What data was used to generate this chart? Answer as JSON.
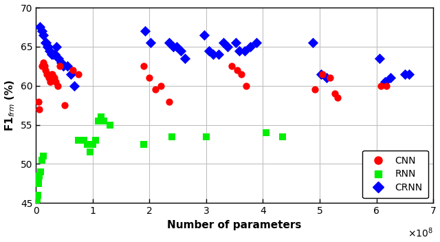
{
  "cnn_x": [
    0.04,
    0.06,
    0.1,
    0.13,
    0.15,
    0.17,
    0.19,
    0.21,
    0.23,
    0.25,
    0.27,
    0.29,
    0.32,
    0.35,
    0.38,
    0.42,
    0.5,
    0.65,
    0.75,
    1.9,
    2.0,
    2.1,
    2.2,
    2.35,
    3.45,
    3.55,
    3.62,
    3.7,
    4.92,
    5.05,
    5.18,
    5.27,
    5.32,
    6.08,
    6.18
  ],
  "cnn_y": [
    58.0,
    57.0,
    62.5,
    63.0,
    62.5,
    62.0,
    61.5,
    61.5,
    61.0,
    60.5,
    61.5,
    61.5,
    61.0,
    60.5,
    60.0,
    62.5,
    57.5,
    62.0,
    61.5,
    62.5,
    61.0,
    59.5,
    60.0,
    58.0,
    62.5,
    62.0,
    61.5,
    60.0,
    59.5,
    61.5,
    61.0,
    59.0,
    58.5,
    60.0,
    60.0
  ],
  "rnn_x": [
    0.01,
    0.02,
    0.03,
    0.04,
    0.05,
    0.06,
    0.08,
    0.1,
    0.13,
    0.75,
    0.85,
    0.9,
    0.95,
    1.0,
    1.05,
    1.1,
    1.15,
    1.2,
    1.3,
    1.9,
    2.4,
    3.0,
    4.05,
    4.35
  ],
  "rnn_y": [
    45.3,
    45.5,
    46.0,
    47.5,
    48.0,
    48.5,
    49.0,
    50.5,
    51.0,
    53.0,
    53.0,
    52.5,
    51.5,
    52.5,
    53.0,
    55.5,
    56.0,
    55.5,
    55.0,
    52.5,
    53.5,
    53.5,
    54.0,
    53.5
  ],
  "crnn_x": [
    0.07,
    0.1,
    0.13,
    0.16,
    0.18,
    0.2,
    0.22,
    0.24,
    0.27,
    0.3,
    0.33,
    0.36,
    0.4,
    0.44,
    0.48,
    0.55,
    0.62,
    0.68,
    1.92,
    2.02,
    2.35,
    2.42,
    2.48,
    2.55,
    2.62,
    2.97,
    3.05,
    3.12,
    3.22,
    3.3,
    3.38,
    3.52,
    3.58,
    3.68,
    3.78,
    3.88,
    4.88,
    5.02,
    5.12,
    6.05,
    6.15,
    6.25,
    6.5,
    6.58
  ],
  "crnn_y": [
    67.5,
    67.0,
    66.5,
    65.5,
    65.5,
    65.0,
    65.0,
    64.5,
    64.0,
    64.0,
    64.0,
    65.0,
    63.5,
    63.0,
    62.5,
    62.5,
    61.5,
    60.0,
    67.0,
    65.5,
    65.5,
    65.0,
    65.0,
    64.5,
    63.5,
    66.5,
    64.5,
    64.0,
    64.0,
    65.5,
    65.0,
    65.5,
    64.5,
    64.5,
    65.0,
    65.5,
    65.5,
    61.5,
    61.0,
    63.5,
    60.5,
    61.0,
    61.5,
    61.5
  ],
  "xlabel": "Number of parameters",
  "ylabel": "F1$_{frm}$ (%)",
  "xlim_min": 0,
  "xlim_max": 700000000.0,
  "ylim_min": 45,
  "ylim_max": 70,
  "yticks": [
    45,
    50,
    55,
    60,
    65,
    70
  ],
  "xtick_vals": [
    0,
    1,
    2,
    3,
    4,
    5,
    6,
    7
  ],
  "x_scale": 100000000.0,
  "cnn_color": "#FF0000",
  "rnn_color": "#00EE00",
  "crnn_color": "#0000FF",
  "bg_color": "#FFFFFF",
  "grid_color": "#C0C0C0",
  "tick_fontsize": 10,
  "label_fontsize": 11,
  "legend_fontsize": 10,
  "marker_size_cnn": 55,
  "marker_size_rnn": 45,
  "marker_size_crnn": 60
}
